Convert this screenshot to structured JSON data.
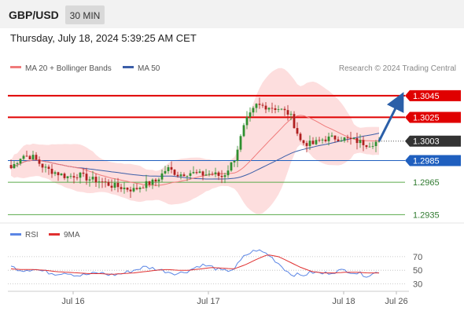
{
  "header": {
    "symbol": "GBP/USD",
    "timeframe": "30 MIN",
    "timestamp": "Thursday, July 18, 2024 5:39:25 AM CET"
  },
  "legend": {
    "ma20_label": "MA 20 + Bollinger Bands",
    "ma50_label": "MA 50",
    "credit": "Research © 2024 Trading Central",
    "rsi_label": "RSI",
    "ma9_label": "9MA"
  },
  "colors": {
    "resistance": "#e00000",
    "support": "#1f5fbf",
    "support_secondary": "#5aaa4a",
    "current": "#333333",
    "ma20": "#f07b7b",
    "ma50": "#3b5ea8",
    "band_fill": "#fcd3d3",
    "candle_up": "#2f8f2f",
    "candle_down": "#b02020",
    "rsi": "#5b86e5",
    "ma9": "#e03030",
    "forecast_arrow": "#2b5fa8"
  },
  "chart_data": [
    {
      "type": "candlestick",
      "title": "",
      "x_labels": [
        "Jul 16",
        "Jul 17",
        "Jul 18",
        "Jul 26"
      ],
      "ylim": [
        1.2928,
        1.3058
      ],
      "levels": [
        {
          "value": 1.3045,
          "label": "1.3045",
          "kind": "resistance"
        },
        {
          "value": 1.3025,
          "label": "1.3025",
          "kind": "resistance"
        },
        {
          "value": 1.3003,
          "label": "1.3003",
          "kind": "current"
        },
        {
          "value": 1.2985,
          "label": "1.2985",
          "kind": "support"
        },
        {
          "value": 1.2965,
          "label": "1.2965",
          "kind": "support_secondary"
        },
        {
          "value": 1.2935,
          "label": "1.2935",
          "kind": "support_secondary"
        }
      ],
      "price_path": [
        1.2978,
        1.299,
        1.2988,
        1.2978,
        1.2974,
        1.297,
        1.2972,
        1.2968,
        1.2966,
        1.2962,
        1.296,
        1.2958,
        1.2963,
        1.2966,
        1.2978,
        1.2972,
        1.2974,
        1.2972,
        1.2973,
        1.297,
        1.2986,
        1.302,
        1.3036,
        1.3035,
        1.3033,
        1.3028,
        1.3002,
        1.3,
        1.3005,
        1.3006,
        1.3005,
        1.3003,
        1.3,
        1.3003
      ],
      "forecast": {
        "from": 1.3003,
        "to": 1.3045,
        "direction": "up"
      }
    },
    {
      "type": "line",
      "title": "RSI",
      "yticks": [
        70,
        50,
        30
      ],
      "ylim": [
        20,
        85
      ],
      "series": [
        {
          "name": "RSI",
          "values": [
            55,
            50,
            52,
            48,
            45,
            47,
            42,
            44,
            46,
            43,
            45,
            50,
            55,
            52,
            48,
            45,
            50,
            58,
            55,
            48,
            52,
            72,
            80,
            74,
            60,
            45,
            42,
            47,
            45,
            48,
            50,
            46,
            42,
            48
          ]
        },
        {
          "name": "9MA",
          "values": [
            52,
            51,
            51,
            50,
            48,
            47,
            46,
            45,
            45,
            44,
            45,
            46,
            48,
            50,
            51,
            50,
            50,
            52,
            54,
            53,
            52,
            58,
            66,
            73,
            70,
            62,
            54,
            48,
            46,
            46,
            47,
            47,
            46,
            46
          ]
        }
      ]
    }
  ]
}
